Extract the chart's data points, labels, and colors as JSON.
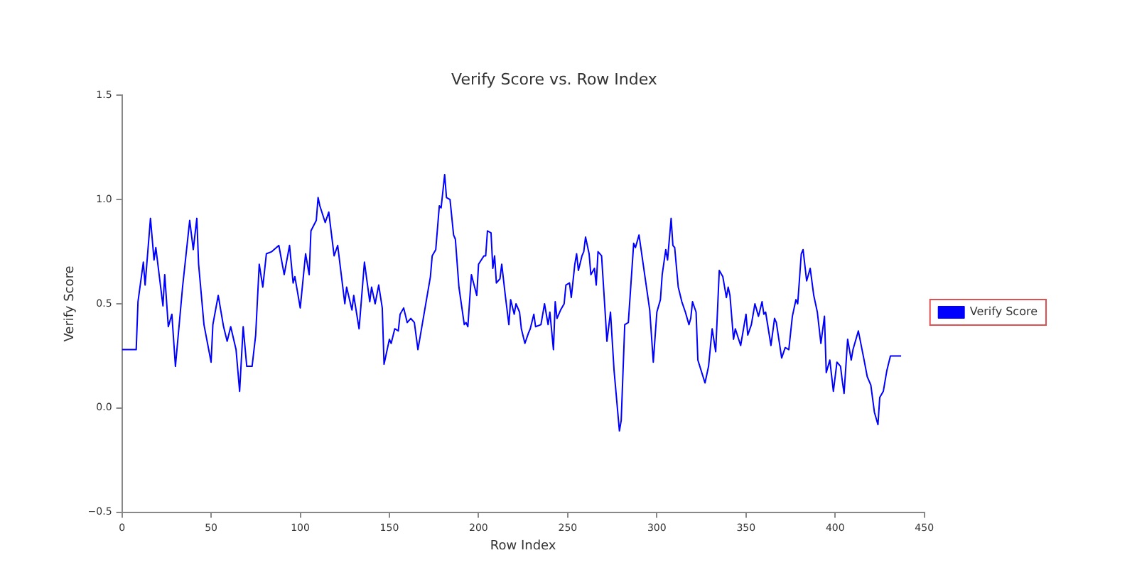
{
  "chart_data": {
    "type": "line",
    "title": "Verify Score vs. Row Index",
    "xlabel": "Row Index",
    "ylabel": "Verify Score",
    "xlim": [
      0,
      450
    ],
    "xticks": [
      0,
      50,
      100,
      150,
      200,
      250,
      300,
      350,
      400,
      450
    ],
    "ylim": [
      -0.5,
      1.5
    ],
    "yticks": [
      {
        "value": -0.5,
        "label": "−0.5"
      },
      {
        "value": 0,
        "label": "0.0"
      },
      {
        "value": 0.5,
        "label": "0.5"
      },
      {
        "value": 1,
        "label": "1.0"
      },
      {
        "value": 1.5,
        "label": "1.5"
      }
    ],
    "grid": false,
    "legend": "right",
    "marker": "none",
    "line_style": "solid",
    "series": [
      {
        "name": "Verify Score",
        "color": "#0000ff",
        "x": [
          0,
          8,
          9,
          12,
          13,
          16,
          18,
          19,
          23,
          24,
          26,
          28,
          30,
          34,
          38,
          40,
          42,
          43,
          46,
          50,
          51,
          54,
          57,
          59,
          61,
          64,
          66,
          68,
          70,
          73,
          75,
          77,
          79,
          81,
          84,
          88,
          91,
          94,
          96,
          97,
          100,
          103,
          105,
          106,
          109,
          110,
          111,
          114,
          116,
          119,
          121,
          123,
          125,
          126,
          129,
          130,
          133,
          136,
          139,
          140,
          142,
          144,
          146,
          147,
          150,
          151,
          153,
          155,
          156,
          158,
          160,
          162,
          164,
          166,
          170,
          173,
          174,
          176,
          178,
          179,
          181,
          182,
          184,
          186,
          187,
          189,
          192,
          193,
          194,
          196,
          199,
          200,
          203,
          204,
          205,
          207,
          208,
          209,
          210,
          212,
          213,
          215,
          217,
          218,
          220,
          221,
          223,
          224,
          226,
          228,
          229,
          231,
          232,
          235,
          237,
          239,
          240,
          242,
          243,
          244,
          246,
          248,
          249,
          251,
          252,
          254,
          255,
          256,
          258,
          259,
          260,
          262,
          263,
          265,
          266,
          267,
          269,
          271,
          272,
          274,
          276,
          279,
          280,
          282,
          284,
          287,
          288,
          290,
          292,
          294,
          296,
          298,
          300,
          302,
          303,
          305,
          306,
          308,
          309,
          310,
          312,
          314,
          316,
          318,
          319,
          320,
          322,
          323,
          327,
          329,
          331,
          333,
          335,
          337,
          339,
          340,
          341,
          343,
          344,
          347,
          348,
          350,
          351,
          353,
          355,
          357,
          359,
          360,
          361,
          364,
          366,
          367,
          370,
          372,
          374,
          376,
          378,
          379,
          381,
          382,
          384,
          386,
          388,
          390,
          392,
          394,
          395,
          397,
          399,
          401,
          403,
          404,
          405,
          407,
          409,
          410,
          413,
          416,
          418,
          419,
          420,
          422,
          424,
          425,
          427,
          429,
          431,
          437
        ],
        "values": [
          0.28,
          0.28,
          0.51,
          0.7,
          0.59,
          0.91,
          0.71,
          0.77,
          0.49,
          0.64,
          0.39,
          0.45,
          0.2,
          0.58,
          0.9,
          0.76,
          0.91,
          0.69,
          0.4,
          0.22,
          0.4,
          0.54,
          0.39,
          0.32,
          0.39,
          0.28,
          0.08,
          0.39,
          0.2,
          0.2,
          0.35,
          0.69,
          0.58,
          0.74,
          0.75,
          0.78,
          0.64,
          0.78,
          0.6,
          0.63,
          0.48,
          0.74,
          0.64,
          0.85,
          0.9,
          1.01,
          0.97,
          0.89,
          0.94,
          0.73,
          0.78,
          0.64,
          0.5,
          0.58,
          0.47,
          0.54,
          0.38,
          0.7,
          0.51,
          0.58,
          0.5,
          0.59,
          0.48,
          0.21,
          0.33,
          0.31,
          0.38,
          0.37,
          0.45,
          0.48,
          0.41,
          0.43,
          0.41,
          0.28,
          0.48,
          0.63,
          0.73,
          0.76,
          0.97,
          0.96,
          1.12,
          1.01,
          1.0,
          0.83,
          0.81,
          0.58,
          0.4,
          0.41,
          0.39,
          0.64,
          0.54,
          0.69,
          0.73,
          0.73,
          0.85,
          0.84,
          0.67,
          0.73,
          0.6,
          0.62,
          0.69,
          0.54,
          0.4,
          0.52,
          0.45,
          0.5,
          0.46,
          0.38,
          0.31,
          0.36,
          0.38,
          0.45,
          0.39,
          0.4,
          0.5,
          0.4,
          0.46,
          0.28,
          0.51,
          0.43,
          0.47,
          0.5,
          0.59,
          0.6,
          0.53,
          0.69,
          0.74,
          0.66,
          0.73,
          0.75,
          0.82,
          0.74,
          0.64,
          0.67,
          0.59,
          0.75,
          0.73,
          0.46,
          0.32,
          0.46,
          0.18,
          -0.11,
          -0.06,
          0.4,
          0.41,
          0.79,
          0.77,
          0.83,
          0.71,
          0.59,
          0.47,
          0.22,
          0.46,
          0.52,
          0.64,
          0.76,
          0.71,
          0.91,
          0.78,
          0.77,
          0.58,
          0.51,
          0.46,
          0.4,
          0.43,
          0.51,
          0.46,
          0.23,
          0.12,
          0.2,
          0.38,
          0.27,
          0.66,
          0.63,
          0.53,
          0.58,
          0.54,
          0.33,
          0.38,
          0.3,
          0.35,
          0.45,
          0.35,
          0.4,
          0.5,
          0.44,
          0.51,
          0.45,
          0.46,
          0.3,
          0.43,
          0.41,
          0.24,
          0.29,
          0.28,
          0.44,
          0.52,
          0.5,
          0.74,
          0.76,
          0.61,
          0.67,
          0.54,
          0.46,
          0.31,
          0.44,
          0.17,
          0.23,
          0.08,
          0.22,
          0.2,
          0.13,
          0.07,
          0.33,
          0.23,
          0.28,
          0.37,
          0.24,
          0.15,
          0.13,
          0.11,
          -0.02,
          -0.08,
          0.05,
          0.08,
          0.18,
          0.25,
          0.25
        ]
      }
    ]
  }
}
